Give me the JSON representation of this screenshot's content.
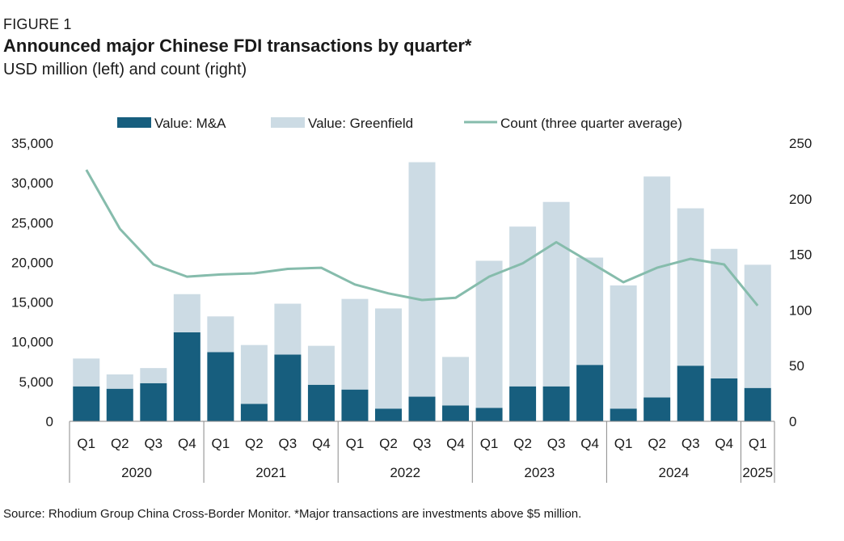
{
  "figure_label": "FIGURE 1",
  "title": "Announced major Chinese FDI transactions by quarter*",
  "subtitle": "USD million (left) and count (right)",
  "source": "Source: Rhodium Group China Cross-Border Monitor. *Major transactions are investments above $5 million.",
  "colors": {
    "ma": "#175e7e",
    "greenfield": "#ccdbe4",
    "count": "#86bcac",
    "axis": "#888888"
  },
  "chart_data": {
    "type": "bar",
    "stacked": true,
    "categories": [
      "Q1",
      "Q2",
      "Q3",
      "Q4",
      "Q1",
      "Q2",
      "Q3",
      "Q4",
      "Q1",
      "Q2",
      "Q3",
      "Q4",
      "Q1",
      "Q2",
      "Q3",
      "Q4",
      "Q1",
      "Q2",
      "Q3",
      "Q4",
      "Q1"
    ],
    "years": [
      {
        "label": "2020",
        "start": 0,
        "count": 4
      },
      {
        "label": "2021",
        "start": 4,
        "count": 4
      },
      {
        "label": "2022",
        "start": 8,
        "count": 4
      },
      {
        "label": "2023",
        "start": 12,
        "count": 4
      },
      {
        "label": "2024",
        "start": 16,
        "count": 4
      },
      {
        "label": "2025",
        "start": 20,
        "count": 1
      }
    ],
    "series": [
      {
        "name": "Value: M&A",
        "type": "bar",
        "values": [
          4400,
          4100,
          4800,
          11200,
          8700,
          2200,
          8400,
          4600,
          4000,
          1600,
          3100,
          2000,
          1700,
          4400,
          4400,
          7100,
          1600,
          3000,
          7000,
          5400,
          4200
        ]
      },
      {
        "name": "Value: Greenfield",
        "type": "bar",
        "values": [
          3500,
          1800,
          1900,
          4800,
          4500,
          7400,
          6400,
          4900,
          11400,
          12600,
          29500,
          6100,
          18500,
          20100,
          23200,
          13500,
          15500,
          27800,
          19800,
          16300,
          15500
        ]
      },
      {
        "name": "Count (three quarter average)",
        "type": "line",
        "axis": "right",
        "values": [
          226,
          173,
          141,
          130,
          132,
          133,
          137,
          138,
          123,
          115,
          109,
          111,
          130,
          142,
          161,
          143,
          125,
          138,
          146,
          141,
          104
        ]
      }
    ],
    "y_left": {
      "min": 0,
      "max": 35000,
      "ticks": [
        "0",
        "5,000",
        "10,000",
        "15,000",
        "20,000",
        "25,000",
        "30,000",
        "35,000"
      ]
    },
    "y_right": {
      "min": 0,
      "max": 250,
      "ticks": [
        "0",
        "50",
        "100",
        "150",
        "200",
        "250"
      ]
    },
    "legend_position": "top"
  }
}
